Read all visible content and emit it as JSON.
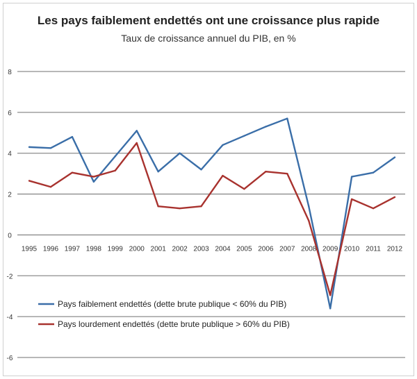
{
  "chart_data": {
    "type": "line",
    "title": "Les pays faiblement endettés ont une croissance plus rapide",
    "subtitle": "Taux de croissance annuel du PIB, en %",
    "xlabel": "",
    "ylabel": "",
    "ylim": [
      -6,
      8
    ],
    "yticks": [
      "8",
      "6",
      "4",
      "2",
      "0",
      "-2",
      "-4",
      "-6"
    ],
    "grid": true,
    "legend_position": "bottom-left",
    "categories": [
      "1995",
      "1996",
      "1997",
      "1998",
      "1999",
      "2000",
      "2001",
      "2002",
      "2003",
      "2004",
      "2005",
      "2006",
      "2007",
      "2008",
      "2009",
      "2010",
      "2011",
      "2012"
    ],
    "series": [
      {
        "name": "Pays faiblement endettés (dette brute publique < 60% du PIB)",
        "color": "#3a6ea8",
        "values": [
          4.3,
          4.25,
          4.8,
          2.6,
          3.85,
          5.1,
          3.1,
          4.0,
          3.2,
          4.4,
          4.85,
          5.3,
          5.7,
          1.4,
          -3.6,
          2.85,
          3.05,
          3.8
        ]
      },
      {
        "name": "Pays lourdement endettés (dette brute publique > 60% du PIB)",
        "color": "#a8322e",
        "values": [
          2.65,
          2.35,
          3.05,
          2.85,
          3.15,
          4.5,
          1.4,
          1.3,
          1.4,
          2.9,
          2.25,
          3.1,
          3.0,
          0.7,
          -2.95,
          1.75,
          1.3,
          1.85
        ]
      }
    ]
  }
}
